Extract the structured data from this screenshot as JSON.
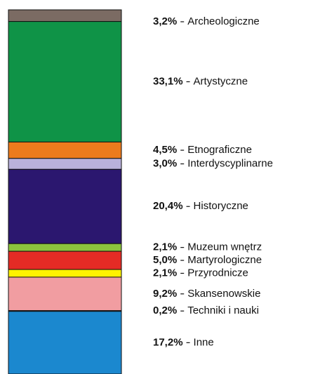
{
  "chart_data": {
    "type": "stacked_bar",
    "categories": [
      "Archeologiczne",
      "Artystyczne",
      "Etnograficzne",
      "Interdyscyplinarne",
      "Historyczne",
      "Muzeum wnętrz",
      "Martyrologiczne",
      "Przyrodnicze",
      "Skansenowskie",
      "Techniki i nauki",
      "Inne"
    ],
    "values": [
      3.2,
      33.1,
      4.5,
      3.0,
      20.4,
      2.1,
      5.0,
      2.1,
      9.2,
      0.2,
      17.2
    ],
    "value_labels": [
      "3,2%",
      "33,1%",
      "4,5%",
      "3,0%",
      "20,4%",
      "2,1%",
      "5,0%",
      "2,1%",
      "9,2%",
      "0,2%",
      "17,2%"
    ],
    "colors": [
      "#7b6b63",
      "#0f9347",
      "#ec7b1d",
      "#b9b1db",
      "#2b176f",
      "#8cc43d",
      "#e42b25",
      "#fff200",
      "#f19da1",
      "#4a4a8a",
      "#1b88cf"
    ]
  }
}
